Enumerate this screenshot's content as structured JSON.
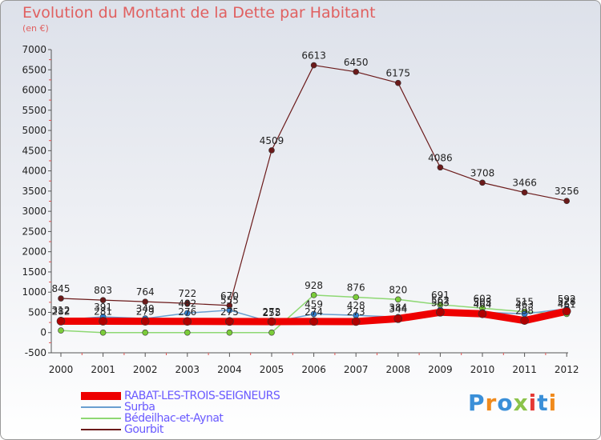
{
  "title": "Evolution du Montant de la Dette par Habitant",
  "subtitle": "(en €)",
  "logo": {
    "text": "Proxiti",
    "colors": [
      "#3a8fd8",
      "#f08a1c",
      "#3a8fd8",
      "#8bc34a",
      "#e53935",
      "#3a8fd8",
      "#f08a1c"
    ]
  },
  "chart_data": {
    "type": "line",
    "x": [
      "2000",
      "2001",
      "2002",
      "2003",
      "2004",
      "2005",
      "2006",
      "2007",
      "2008",
      "2009",
      "2010",
      "2011",
      "2012"
    ],
    "ylim": [
      -500,
      7000
    ],
    "yticks": [
      "-500",
      "0",
      "500",
      "1000",
      "1500",
      "2000",
      "2500",
      "3000",
      "3500",
      "4000",
      "4500",
      "5000",
      "5500",
      "6000",
      "6500",
      "7000"
    ],
    "grid": false,
    "series": [
      {
        "name": "Gourbit",
        "color": "#6b1a1a",
        "marker": "#6b1a1a",
        "values": [
          845,
          803,
          764,
          722,
          670,
          4509,
          6613,
          6450,
          6175,
          4086,
          3708,
          3466,
          3256
        ],
        "labels": [
          "845",
          "803",
          "764",
          "722",
          "670",
          "4509",
          "6613",
          "6450",
          "6175",
          "4086",
          "3708",
          "3466",
          "3256"
        ]
      },
      {
        "name": "Bédeilhac-et-Aynat",
        "color": "#8ed873",
        "marker": "#7bcc3a",
        "values": [
          52,
          0,
          0,
          0,
          0,
          0,
          928,
          876,
          820,
          691,
          603,
          515,
          461
        ],
        "labels": [
          "",
          "",
          "",
          "",
          "",
          "",
          "928",
          "876",
          "820",
          "691",
          "603",
          "515",
          "461"
        ]
      },
      {
        "name": "Surba",
        "color": "#6a9fd0",
        "marker": "#2f7fd0",
        "values": [
          312,
          391,
          349,
          482,
          555,
          255,
          459,
          428,
          384,
          562,
          505,
          463,
          592
        ],
        "labels": [
          "312",
          "391",
          "349",
          "482",
          "555",
          "255",
          "459",
          "428",
          "384",
          "562",
          "505",
          "463",
          "592"
        ]
      },
      {
        "name": "RABAT-LES-TROIS-SEIGNEURS",
        "color": "#ee0000",
        "marker": "#b00000",
        "values": [
          282,
          281,
          279,
          276,
          275,
          272,
          274,
          273,
          344,
          503,
          464,
          298,
          528
        ],
        "labels": [
          "282",
          "281",
          "279",
          "276",
          "275",
          "272",
          "274",
          "273",
          "344",
          "503",
          "464",
          "298",
          "528"
        ]
      }
    ]
  },
  "legend": [
    {
      "name": "RABAT-LES-TROIS-SEIGNEURS",
      "color": "#ee0000",
      "thickness": 10
    },
    {
      "name": "Surba",
      "color": "#6a9fd0",
      "thickness": 2
    },
    {
      "name": "Bédeilhac-et-Aynat",
      "color": "#8ed873",
      "thickness": 2
    },
    {
      "name": "Gourbit",
      "color": "#6b1a1a",
      "thickness": 2
    }
  ]
}
